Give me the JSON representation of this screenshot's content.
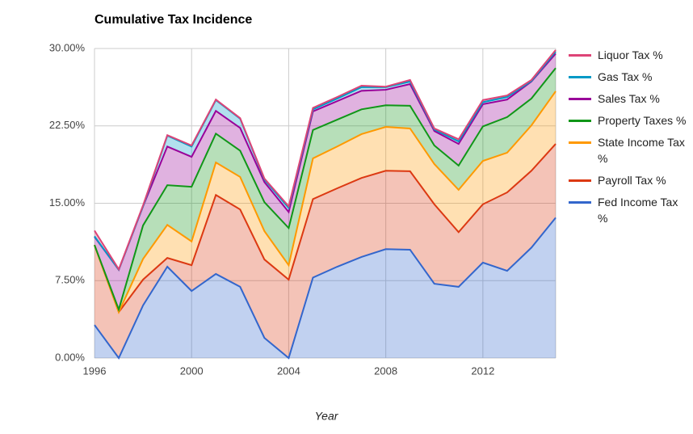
{
  "chart_data": {
    "type": "stacked-area",
    "title": "Cumulative Tax Incidence",
    "x_label": "Year",
    "x": [
      1996,
      1997,
      1998,
      1999,
      2000,
      2001,
      2002,
      2003,
      2004,
      2005,
      2006,
      2007,
      2008,
      2009,
      2010,
      2011,
      2012,
      2013,
      2014,
      2015
    ],
    "xlim": [
      1996,
      2015
    ],
    "xticks": [
      1996,
      2000,
      2004,
      2008,
      2012
    ],
    "ylim": [
      0,
      30
    ],
    "yticks": [
      {
        "value": 0,
        "label": "0.00%"
      },
      {
        "value": 7.5,
        "label": "7.50%"
      },
      {
        "value": 15,
        "label": "15.00%"
      },
      {
        "value": 22.5,
        "label": "22.50%"
      },
      {
        "value": 30,
        "label": "30.00%"
      }
    ],
    "grid": true,
    "legend": "right",
    "series": [
      {
        "name": "Fed Income Tax %",
        "color": "#3366cc",
        "values": [
          3.2,
          0,
          5.1,
          8.85,
          6.5,
          8.15,
          6.9,
          1.95,
          0,
          7.8,
          8.85,
          9.8,
          10.55,
          10.5,
          7.2,
          6.9,
          9.25,
          8.45,
          10.7,
          13.6
        ]
      },
      {
        "name": "Payroll Tax %",
        "color": "#dc3912",
        "values": [
          7.75,
          4.45,
          2.5,
          0.85,
          2.5,
          7.65,
          7.5,
          7.6,
          7.6,
          7.6,
          7.6,
          7.65,
          7.6,
          7.6,
          7.7,
          5.3,
          5.65,
          7.6,
          7.45,
          7.15
        ]
      },
      {
        "name": "State Income Tax %",
        "color": "#ff9900",
        "values": [
          0,
          0,
          2.0,
          3.2,
          2.3,
          3.15,
          3.15,
          2.75,
          1.4,
          3.95,
          4.05,
          4.25,
          4.25,
          4.15,
          3.9,
          4.1,
          4.2,
          3.85,
          4.4,
          5.1
        ]
      },
      {
        "name": "Property Taxes %",
        "color": "#109618",
        "values": [
          0,
          0.25,
          3.25,
          3.85,
          5.3,
          2.8,
          2.55,
          2.8,
          3.6,
          2.75,
          2.6,
          2.4,
          2.1,
          2.2,
          1.8,
          2.35,
          3.35,
          3.45,
          2.6,
          2.25
        ]
      },
      {
        "name": "Sales Tax %",
        "color": "#990099",
        "values": [
          0.8,
          3.85,
          1.85,
          3.75,
          2.9,
          2.2,
          2.2,
          1.95,
          1.55,
          1.8,
          1.8,
          1.8,
          1.5,
          2.1,
          1.4,
          2.1,
          2.15,
          1.7,
          1.65,
          1.4
        ]
      },
      {
        "name": "Gas Tax %",
        "color": "#0099c6",
        "values": [
          0.05,
          0,
          0,
          1.05,
          1.0,
          1.05,
          0.9,
          0.25,
          0.4,
          0.2,
          0.25,
          0.35,
          0.25,
          0.25,
          0.15,
          0.25,
          0.2,
          0.25,
          0.05,
          0.2
        ]
      },
      {
        "name": "Liquor Tax %",
        "color": "#dd4477",
        "values": [
          0.55,
          0.05,
          0.1,
          0.05,
          0.1,
          0.05,
          0.05,
          0.1,
          0.15,
          0.15,
          0.15,
          0.15,
          0.05,
          0.15,
          0.1,
          0.2,
          0.2,
          0.15,
          0.1,
          0.15
        ]
      }
    ]
  }
}
